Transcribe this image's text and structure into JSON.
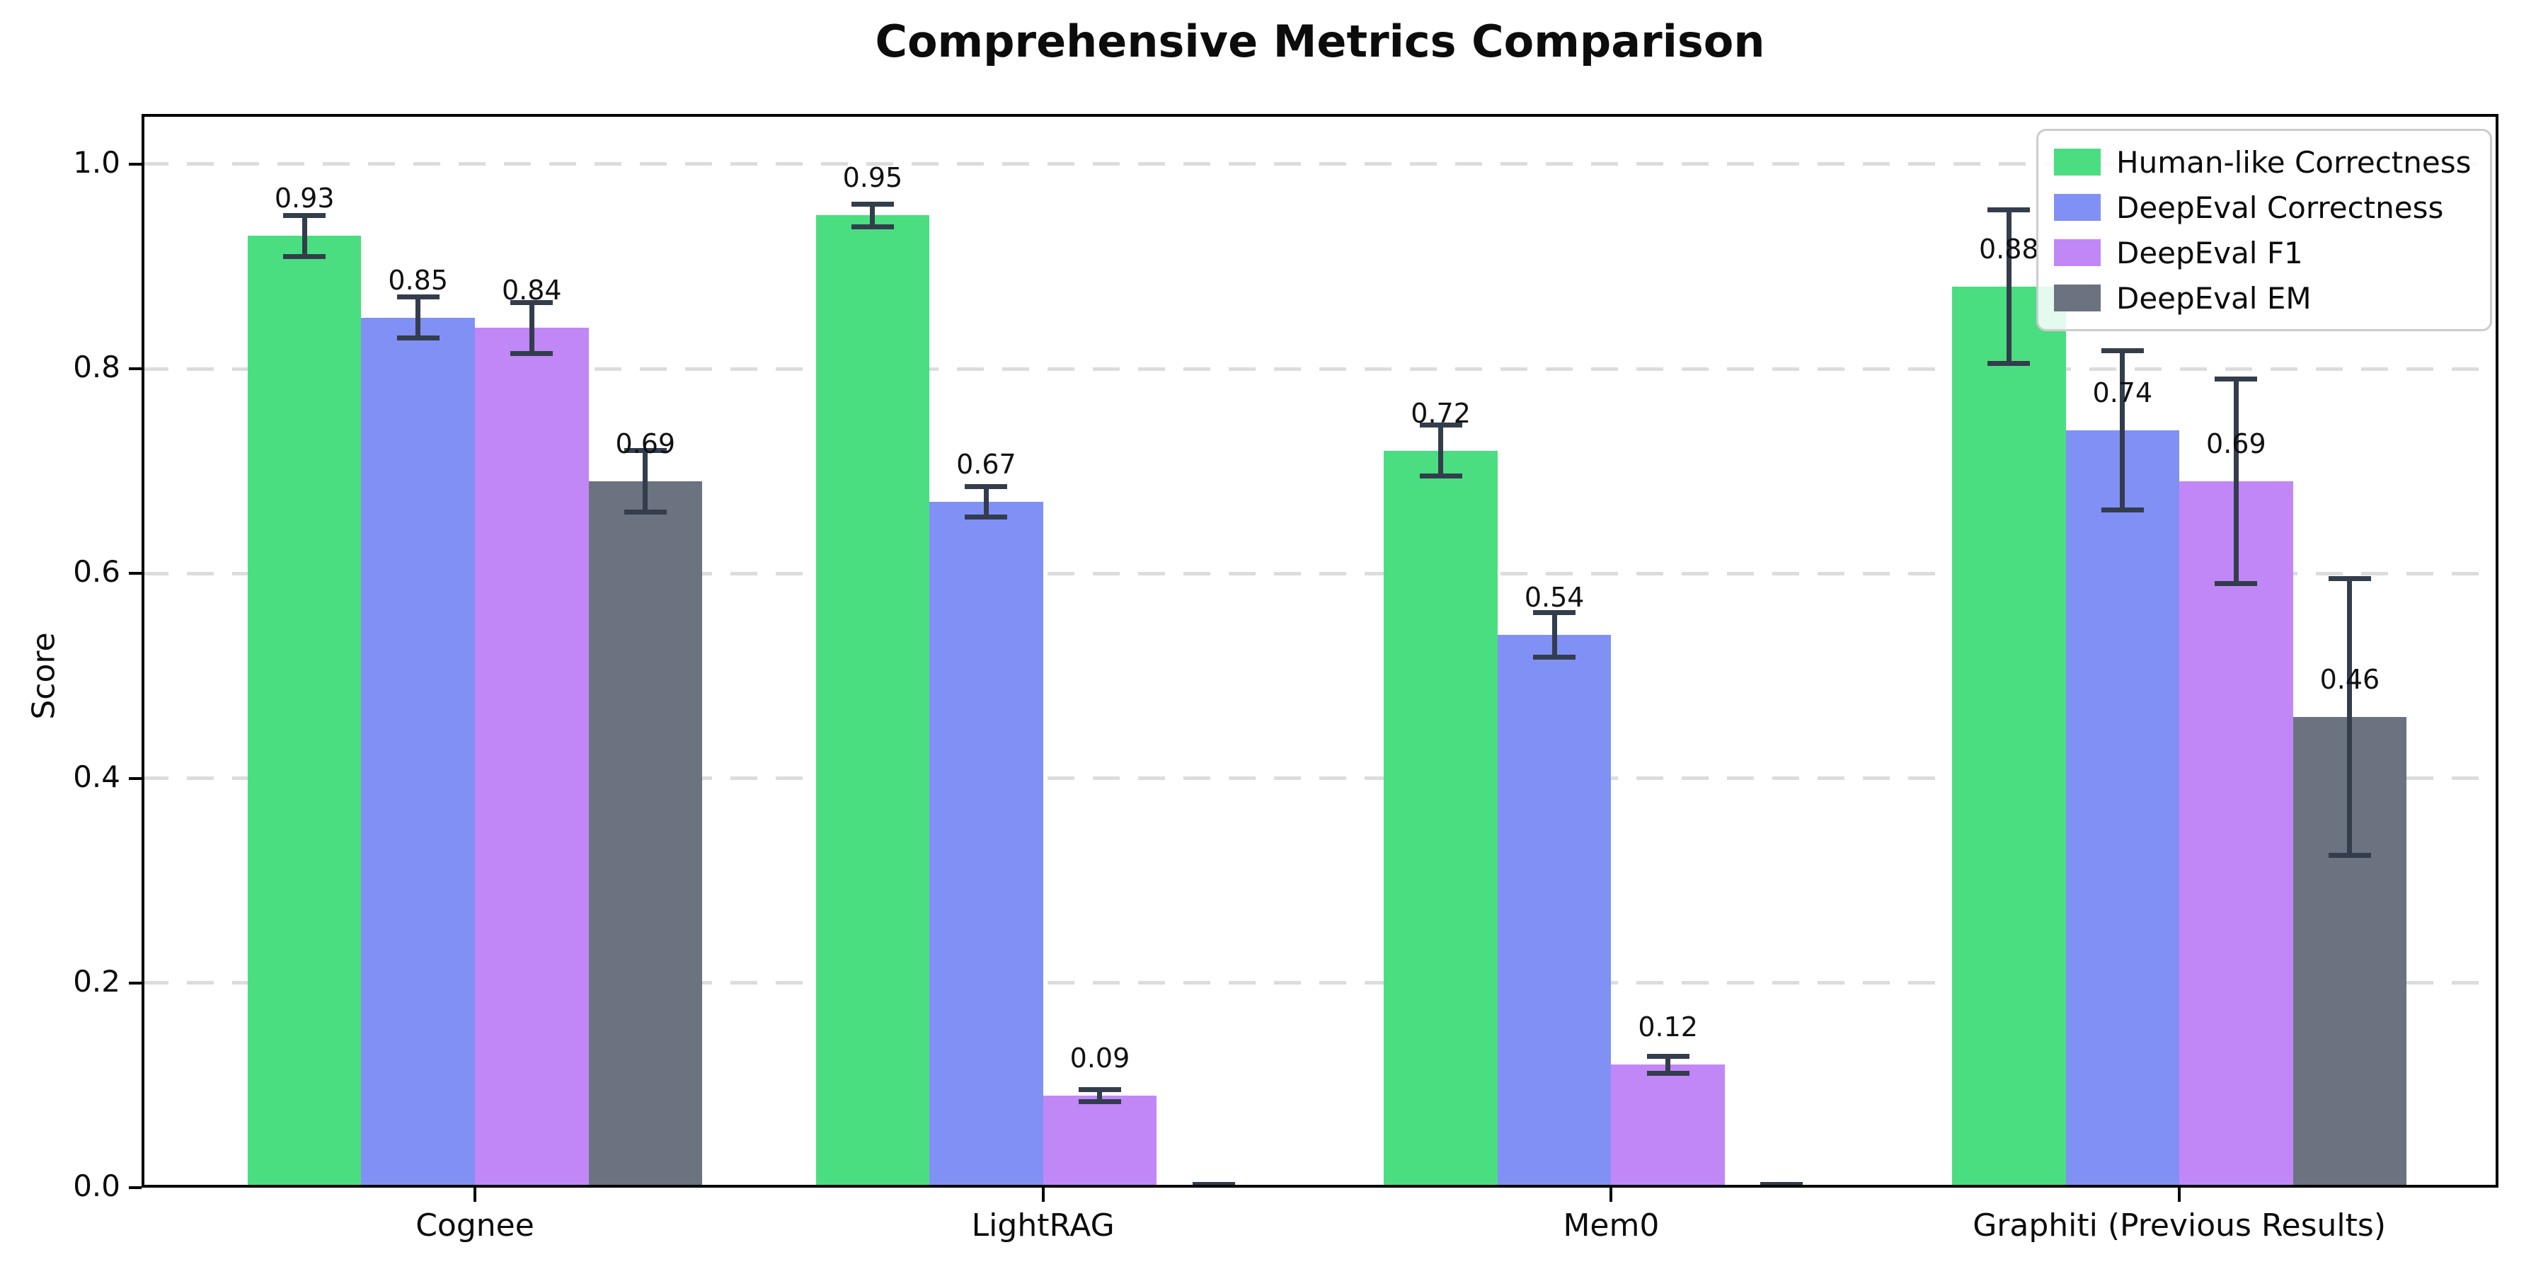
{
  "figure": {
    "background": "#ffffff"
  },
  "chart_data": {
    "type": "bar",
    "title": "Comprehensive Metrics Comparison",
    "ylabel": "Score",
    "xlabel": "",
    "categories": [
      "Cognee",
      "LightRAG",
      "Mem0",
      "Graphiti (Previous Results)"
    ],
    "series": [
      {
        "name": "Human-like Correctness",
        "color": "#4ade80",
        "values": [
          0.93,
          0.95,
          0.72,
          0.88
        ],
        "errors": [
          0.02,
          0.011,
          0.025,
          0.075
        ],
        "value_labels": [
          "0.93",
          "0.95",
          "0.72",
          "0.88"
        ]
      },
      {
        "name": "DeepEval Correctness",
        "color": "#8190f5",
        "values": [
          0.85,
          0.67,
          0.54,
          0.74
        ],
        "errors": [
          0.02,
          0.015,
          0.022,
          0.078
        ],
        "value_labels": [
          "0.85",
          "0.67",
          "0.54",
          "0.74"
        ]
      },
      {
        "name": "DeepEval F1",
        "color": "#c187f6",
        "values": [
          0.84,
          0.09,
          0.12,
          0.69
        ],
        "errors": [
          0.025,
          0.006,
          0.008,
          0.1
        ],
        "value_labels": [
          "0.84",
          "0.09",
          "0.12",
          "0.69"
        ]
      },
      {
        "name": "DeepEval EM",
        "color": "#6b7280",
        "values": [
          0.69,
          0.0,
          0.0,
          0.46
        ],
        "errors": [
          0.03,
          0.003,
          0.003,
          0.135
        ],
        "value_labels": [
          "0.69",
          "",
          "",
          "0.46"
        ]
      }
    ],
    "yticks": [
      0.0,
      0.2,
      0.4,
      0.6,
      0.8,
      1.0
    ],
    "ytick_labels": [
      "0.0",
      "0.2",
      "0.4",
      "0.6",
      "0.8",
      "1.0"
    ],
    "ylim": [
      0,
      1.049
    ],
    "grid": {
      "axis": "y",
      "style": "dashed",
      "color": "#dcdcdc"
    },
    "error_bar_color": "#333d4c",
    "legend": {
      "position": "upper right"
    }
  }
}
